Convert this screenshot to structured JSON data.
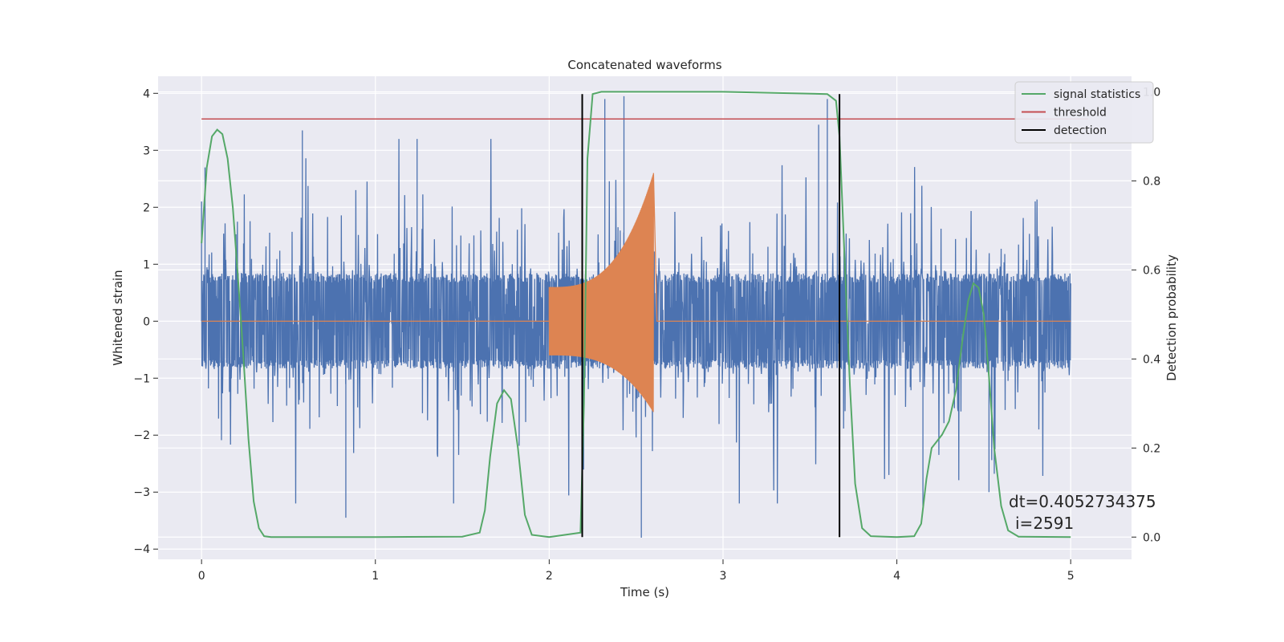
{
  "chart_data": {
    "type": "line",
    "title": "Concatenated waveforms",
    "xlabel": "Time (s)",
    "ylabel": "Whitened strain",
    "ylabel_right": "Detection probability",
    "xlim": [
      -0.25,
      5.35
    ],
    "ylim": [
      -4.18,
      4.3
    ],
    "ylim_right": [
      -0.05,
      1.035
    ],
    "x_ticks": [
      0,
      1,
      2,
      3,
      4,
      5
    ],
    "y_ticks": [
      -4,
      -3,
      -2,
      -1,
      0,
      1,
      2,
      3,
      4
    ],
    "y_ticks_right": [
      0.0,
      0.2,
      0.4,
      0.6,
      0.8,
      1.0
    ],
    "x_tick_labels": [
      "0",
      "1",
      "2",
      "3",
      "4",
      "5"
    ],
    "y_tick_labels": [
      "−4",
      "−3",
      "−2",
      "−1",
      "0",
      "1",
      "2",
      "3",
      "4"
    ],
    "y_tick_labels_right": [
      "0.0",
      "0.2",
      "0.4",
      "0.6",
      "0.8",
      "1.0"
    ],
    "grid": true,
    "background": "#eaeaf2",
    "legend_position": "top-right",
    "noise": {
      "color": "#4c72b0",
      "x_range": [
        0,
        5
      ],
      "core_amplitude": 0.8,
      "peaks": [
        {
          "x": 0.0,
          "y": 2.1
        },
        {
          "x": 0.02,
          "y": 2.7
        },
        {
          "x": 0.58,
          "y": 3.35
        },
        {
          "x": 0.83,
          "y": -3.45
        },
        {
          "x": 1.24,
          "y": 3.2
        },
        {
          "x": 1.45,
          "y": -3.2
        },
        {
          "x": 2.32,
          "y": 3.9
        },
        {
          "x": 2.43,
          "y": 3.95
        },
        {
          "x": 2.53,
          "y": -3.8
        },
        {
          "x": 3.55,
          "y": 3.45
        },
        {
          "x": 3.6,
          "y": 3.9
        },
        {
          "x": 4.53,
          "y": -3.0
        },
        {
          "x": 4.15,
          "y": -3.25
        }
      ]
    },
    "injected_signal": {
      "color": "#dd8452",
      "x_start": 2.0,
      "x_peak": 2.6,
      "x_end": 2.62,
      "amplitude_start": 0.6,
      "amplitude_peak": 2.6,
      "amplitude_negative_peak": -1.6
    },
    "series": [
      {
        "name": "signal statistics",
        "color": "#55a868",
        "axis": "right",
        "x": [
          0.0,
          0.03,
          0.06,
          0.09,
          0.12,
          0.15,
          0.18,
          0.21,
          0.24,
          0.27,
          0.3,
          0.33,
          0.36,
          0.4,
          0.6,
          1.0,
          1.5,
          1.6,
          1.63,
          1.66,
          1.7,
          1.74,
          1.78,
          1.82,
          1.86,
          1.9,
          2.0,
          2.18,
          2.2,
          2.22,
          2.25,
          2.3,
          3.0,
          3.6,
          3.65,
          3.67,
          3.7,
          3.73,
          3.76,
          3.8,
          3.85,
          4.0,
          4.1,
          4.14,
          4.17,
          4.2,
          4.23,
          4.26,
          4.3,
          4.34,
          4.38,
          4.41,
          4.44,
          4.47,
          4.5,
          4.53,
          4.56,
          4.6,
          4.64,
          4.7,
          5.0
        ],
        "y": [
          0.66,
          0.83,
          0.9,
          0.915,
          0.905,
          0.85,
          0.74,
          0.58,
          0.41,
          0.22,
          0.08,
          0.02,
          0.002,
          0.0,
          0.0,
          0.0,
          0.001,
          0.01,
          0.06,
          0.18,
          0.3,
          0.33,
          0.31,
          0.2,
          0.05,
          0.005,
          0.0,
          0.01,
          0.3,
          0.85,
          0.995,
          1.0,
          1.0,
          0.995,
          0.98,
          0.9,
          0.62,
          0.34,
          0.12,
          0.02,
          0.002,
          0.0,
          0.002,
          0.03,
          0.13,
          0.2,
          0.215,
          0.23,
          0.26,
          0.33,
          0.45,
          0.53,
          0.57,
          0.56,
          0.5,
          0.36,
          0.2,
          0.07,
          0.015,
          0.001,
          0.0
        ]
      },
      {
        "name": "threshold",
        "color": "#c44e52",
        "axis": "left",
        "x": [
          0,
          5.1
        ],
        "y": [
          3.55,
          3.55
        ]
      },
      {
        "name": "detection",
        "color": "#000000",
        "axis": "right",
        "x_positions": [
          2.19,
          3.67
        ],
        "y_range": [
          0.0,
          0.995
        ]
      }
    ],
    "annotation": {
      "line1": "dt=0.4052734375",
      "line2": "i=2591"
    }
  }
}
